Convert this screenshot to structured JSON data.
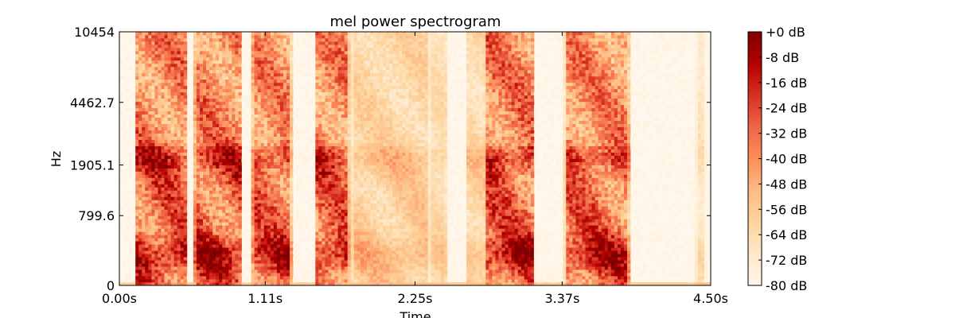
{
  "chart_data": {
    "type": "heatmap",
    "title": "mel power spectrogram",
    "xlabel": "Time",
    "ylabel": "Hz",
    "xlim": [
      0,
      4.5
    ],
    "x_ticks": [
      {
        "value": 0.0,
        "label": "0.00s"
      },
      {
        "value": 1.11,
        "label": "1.11s"
      },
      {
        "value": 2.25,
        "label": "2.25s"
      },
      {
        "value": 3.37,
        "label": "3.37s"
      },
      {
        "value": 4.5,
        "label": "4.50s"
      }
    ],
    "y_ticks": [
      {
        "value": 0,
        "label": "0"
      },
      {
        "value": 799.6,
        "label": "799.6"
      },
      {
        "value": 1905.1,
        "label": "1905.1"
      },
      {
        "value": 4462.7,
        "label": "4462.7"
      },
      {
        "value": 10454,
        "label": "10454"
      }
    ],
    "y_scale": "mel",
    "colormap": "OrRd",
    "colormap_stops": [
      "#fff7ec",
      "#fee8c8",
      "#fdd49e",
      "#fdbb84",
      "#fc8d59",
      "#ef6548",
      "#d7301f",
      "#b30000",
      "#7f0000"
    ],
    "colorbar": {
      "range_db": [
        -80,
        0
      ],
      "ticks": [
        "+0 dB",
        "-8 dB",
        "-16 dB",
        "-24 dB",
        "-32 dB",
        "-40 dB",
        "-48 dB",
        "-56 dB",
        "-64 dB",
        "-72 dB",
        "-80 dB"
      ]
    },
    "energy_segments_seconds": [
      {
        "start": 0.13,
        "end": 0.5,
        "level": 1.0
      },
      {
        "start": 0.58,
        "end": 0.92,
        "level": 1.0
      },
      {
        "start": 1.02,
        "end": 1.3,
        "level": 0.95
      },
      {
        "start": 1.5,
        "end": 1.74,
        "level": 0.95
      },
      {
        "start": 1.78,
        "end": 2.35,
        "level": 0.45
      },
      {
        "start": 2.38,
        "end": 2.48,
        "level": 0.35
      },
      {
        "start": 2.65,
        "end": 2.8,
        "level": 0.4
      },
      {
        "start": 2.8,
        "end": 3.15,
        "level": 1.0
      },
      {
        "start": 3.4,
        "end": 3.87,
        "level": 0.95
      },
      {
        "start": 4.4,
        "end": 4.45,
        "level": 0.25
      }
    ]
  }
}
